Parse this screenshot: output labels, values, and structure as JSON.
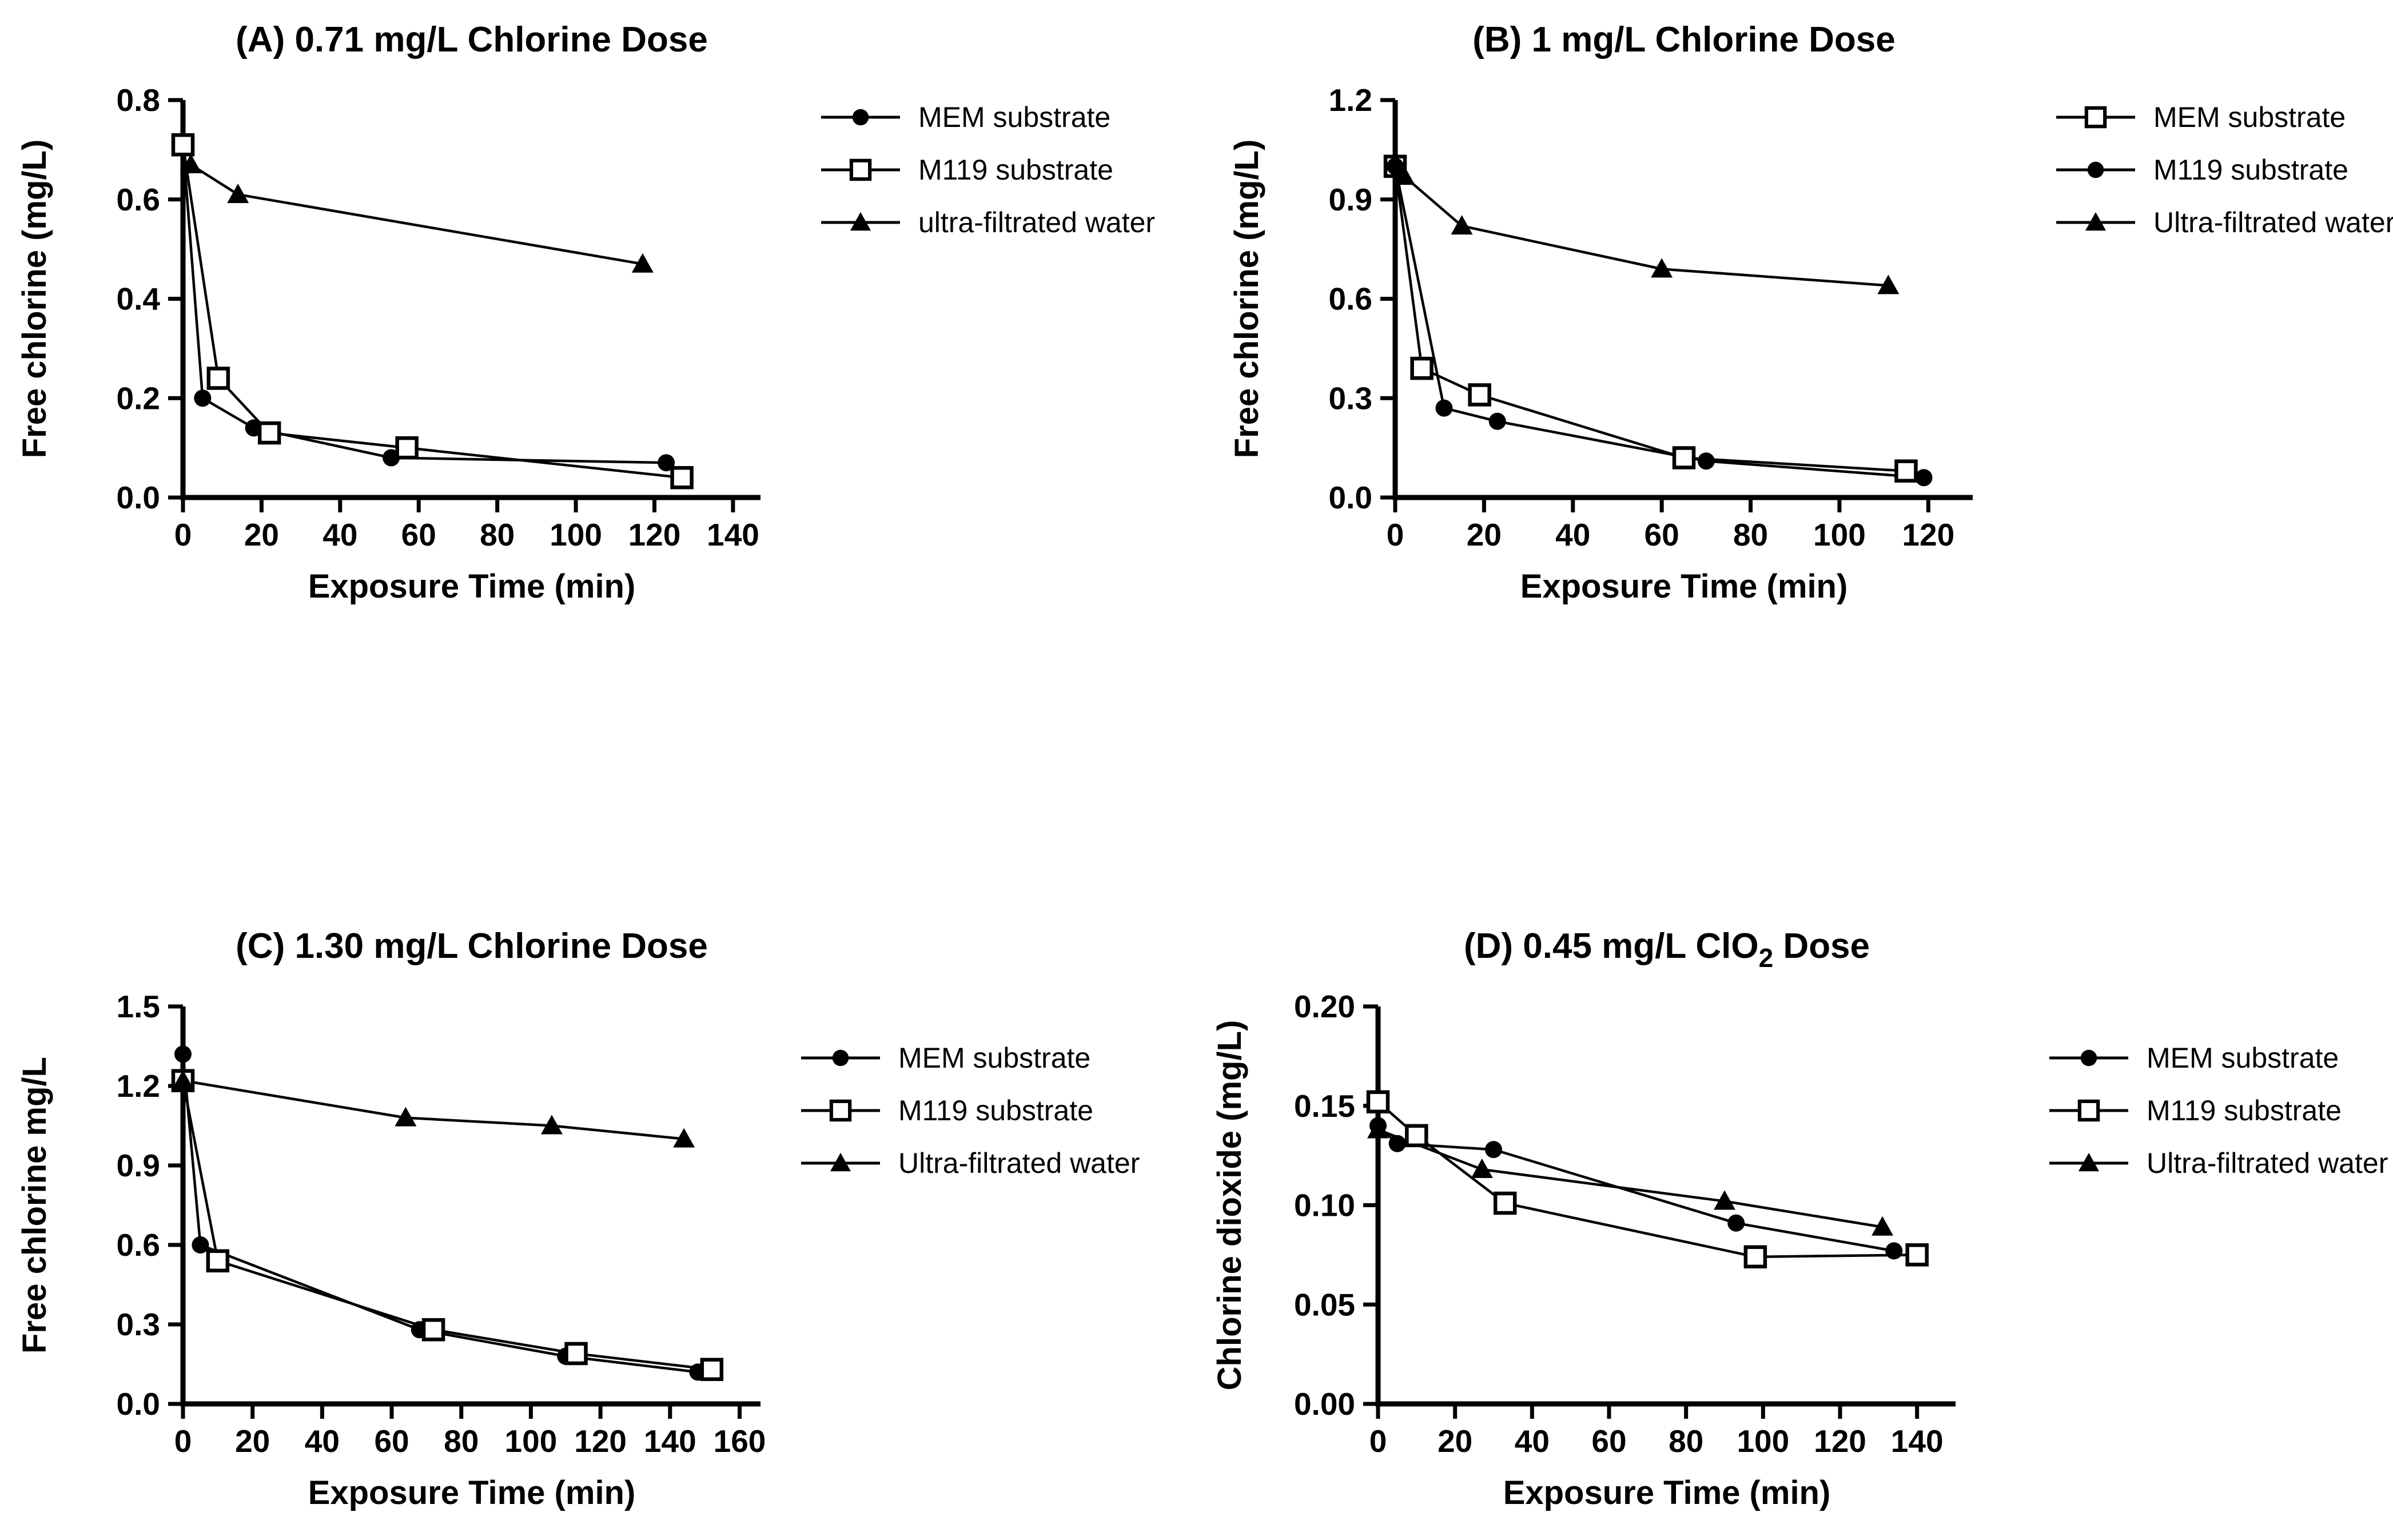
{
  "figure": {
    "background_color": "#ffffff",
    "foreground_color": "#000000",
    "legend_position": "right",
    "grid": false
  },
  "chart_data": [
    {
      "id": "A",
      "type": "line",
      "title_text": "(A) 0.71 mg/L Chlorine Dose",
      "title_segments": [
        {
          "text": "(A) 0.71 mg/L Chlorine Dose"
        }
      ],
      "xlabel": "Exposure Time (min)",
      "ylabel": "Free chlorine (mg/L)",
      "xlim": [
        0,
        147
      ],
      "ylim": [
        0,
        0.8
      ],
      "xticks": [
        0,
        20,
        40,
        60,
        80,
        100,
        120,
        140
      ],
      "yticks": [
        0.0,
        0.2,
        0.4,
        0.6,
        0.8
      ],
      "ytick_labels": [
        "0.0",
        "0.2",
        "0.4",
        "0.6",
        "0.8"
      ],
      "series": [
        {
          "name": "MEM substrate",
          "marker": "filled-circle",
          "points": [
            [
              0,
              0.71
            ],
            [
              5,
              0.2
            ],
            [
              18,
              0.14
            ],
            [
              53,
              0.08
            ],
            [
              123,
              0.07
            ]
          ]
        },
        {
          "name": "M119 substrate",
          "marker": "open-square",
          "points": [
            [
              0,
              0.71
            ],
            [
              9,
              0.24
            ],
            [
              22,
              0.13
            ],
            [
              57,
              0.1
            ],
            [
              127,
              0.04
            ]
          ]
        },
        {
          "name": "ultra-filtrated water",
          "marker": "filled-triangle",
          "points": [
            [
              2,
              0.67
            ],
            [
              14,
              0.61
            ],
            [
              117,
              0.47
            ]
          ]
        }
      ]
    },
    {
      "id": "B",
      "type": "line",
      "title_text": "(B) 1 mg/L  Chlorine Dose",
      "title_segments": [
        {
          "text": "(B) 1 mg/L  Chlorine Dose"
        }
      ],
      "xlabel": "Exposure Time (min)",
      "ylabel": "Free chlorine (mg/L)",
      "xlim": [
        0,
        130
      ],
      "ylim": [
        0,
        1.2
      ],
      "xticks": [
        0,
        20,
        40,
        60,
        80,
        100,
        120
      ],
      "yticks": [
        0.0,
        0.3,
        0.6,
        0.9,
        1.2
      ],
      "ytick_labels": [
        "0.0",
        "0.3",
        "0.6",
        "0.9",
        "1.2"
      ],
      "series": [
        {
          "name": "MEM substrate",
          "marker": "open-square",
          "points": [
            [
              0,
              1.0
            ],
            [
              6,
              0.39
            ],
            [
              19,
              0.31
            ],
            [
              65,
              0.12
            ],
            [
              115,
              0.08
            ]
          ]
        },
        {
          "name": "M119 substrate",
          "marker": "filled-circle",
          "points": [
            [
              0,
              1.0
            ],
            [
              11,
              0.27
            ],
            [
              23,
              0.23
            ],
            [
              70,
              0.11
            ],
            [
              119,
              0.06
            ]
          ]
        },
        {
          "name": "Ultra-filtrated water",
          "marker": "filled-triangle",
          "points": [
            [
              2,
              0.97
            ],
            [
              15,
              0.82
            ],
            [
              60,
              0.69
            ],
            [
              111,
              0.64
            ]
          ]
        }
      ]
    },
    {
      "id": "C",
      "type": "line",
      "title_text": "(C) 1.30 mg/L Chlorine Dose",
      "title_segments": [
        {
          "text": "(C) 1.30 mg/L Chlorine Dose"
        }
      ],
      "xlabel": "Exposure Time (min)",
      "ylabel": "Free chlorine mg/L",
      "xlim": [
        0,
        166
      ],
      "ylim": [
        0,
        1.5
      ],
      "xticks": [
        0,
        20,
        40,
        60,
        80,
        100,
        120,
        140,
        160
      ],
      "yticks": [
        0.0,
        0.3,
        0.6,
        0.9,
        1.2,
        1.5
      ],
      "ytick_labels": [
        "0.0",
        "0.3",
        "0.6",
        "0.9",
        "1.2",
        "1.5"
      ],
      "series": [
        {
          "name": "MEM substrate",
          "marker": "filled-circle",
          "points": [
            [
              0,
              1.32
            ],
            [
              5,
              0.6
            ],
            [
              68,
              0.28
            ],
            [
              110,
              0.18
            ],
            [
              148,
              0.12
            ]
          ]
        },
        {
          "name": "M119 substrate",
          "marker": "open-square",
          "points": [
            [
              0,
              1.22
            ],
            [
              10,
              0.54
            ],
            [
              72,
              0.28
            ],
            [
              113,
              0.19
            ],
            [
              152,
              0.13
            ]
          ]
        },
        {
          "name": "Ultra-filtrated water",
          "marker": "filled-triangle",
          "points": [
            [
              0,
              1.22
            ],
            [
              64,
              1.08
            ],
            [
              106,
              1.05
            ],
            [
              144,
              1.0
            ]
          ]
        }
      ]
    },
    {
      "id": "D",
      "type": "line",
      "title_text": "(D) 0.45 mg/L ClO₂ Dose",
      "title_segments": [
        {
          "text": "(D) 0.45 mg/L ClO"
        },
        {
          "text": "2",
          "subscript": true
        },
        {
          "text": " Dose"
        }
      ],
      "xlabel": "Exposure Time (min)",
      "ylabel": "Chlorine dioxide (mg/L)",
      "xlim": [
        0,
        150
      ],
      "ylim": [
        0,
        0.2
      ],
      "xticks": [
        0,
        20,
        40,
        60,
        80,
        100,
        120,
        140
      ],
      "yticks": [
        0.0,
        0.05,
        0.1,
        0.15,
        0.2
      ],
      "ytick_labels": [
        "0.00",
        "0.05",
        "0.10",
        "0.15",
        "0.20"
      ],
      "series": [
        {
          "name": "MEM substrate",
          "marker": "filled-circle",
          "points": [
            [
              0,
              0.14
            ],
            [
              5,
              0.131
            ],
            [
              30,
              0.128
            ],
            [
              93,
              0.091
            ],
            [
              134,
              0.077
            ]
          ]
        },
        {
          "name": "M119 substrate",
          "marker": "open-square",
          "points": [
            [
              0,
              0.152
            ],
            [
              10,
              0.135
            ],
            [
              33,
              0.101
            ],
            [
              98,
              0.074
            ],
            [
              140,
              0.075
            ]
          ]
        },
        {
          "name": "Ultra-filtrated water",
          "marker": "filled-triangle",
          "points": [
            [
              0,
              0.138
            ],
            [
              27,
              0.118
            ],
            [
              90,
              0.102
            ],
            [
              131,
              0.089
            ]
          ]
        }
      ]
    }
  ]
}
